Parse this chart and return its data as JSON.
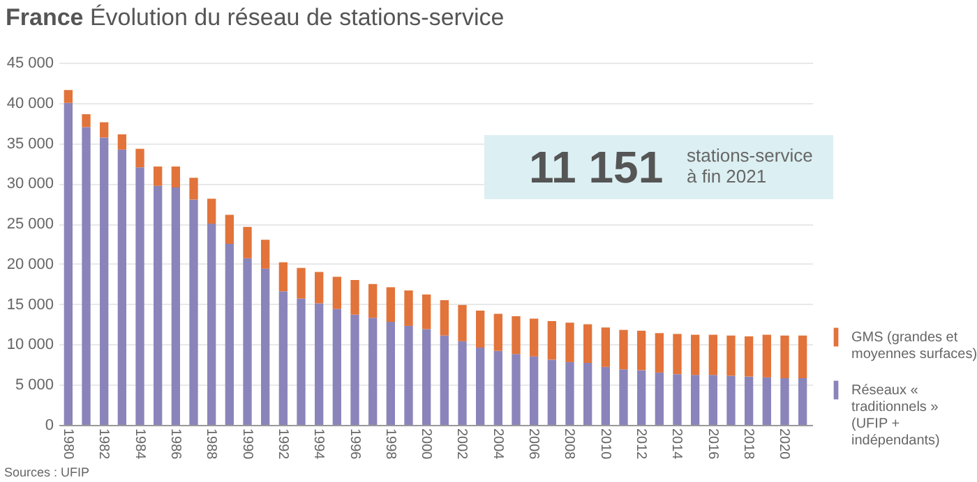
{
  "chart_data": {
    "type": "bar",
    "stacked": true,
    "title": "France",
    "subtitle": "Évolution du réseau de stations-service",
    "annotations": [
      "11 151",
      "stations-service à fin 2021",
      "Sources : UFIP"
    ],
    "categories": [
      "1980",
      null,
      "1982",
      null,
      "1984",
      null,
      "1986",
      null,
      "1988",
      null,
      "1990",
      null,
      "1992",
      null,
      "1994",
      null,
      "1996",
      null,
      "1998",
      null,
      "2000",
      null,
      "2002",
      null,
      "2004",
      null,
      "2006",
      null,
      "2008",
      null,
      "2010",
      null,
      "2012",
      null,
      "2014",
      null,
      "2016",
      null,
      "2018",
      null,
      "2020",
      null
    ],
    "series": [
      {
        "name": "Réseaux « traditionnels » (UFIP + indépendants)",
        "color": "#8a84bb",
        "values": [
          40000,
          37000,
          35700,
          34200,
          32000,
          29700,
          29500,
          28000,
          25000,
          22500,
          20700,
          19400,
          16600,
          15700,
          15100,
          14400,
          13700,
          13300,
          12800,
          12300,
          11900,
          11100,
          10400,
          9600,
          9200,
          8800,
          8500,
          8100,
          7800,
          7700,
          7200,
          6900,
          6800,
          6500,
          6300,
          6200,
          6200,
          6100,
          6000,
          5900,
          5800,
          5800
        ]
      },
      {
        "name": "GMS (grandes et moyennes surfaces)",
        "color": "#e2733a",
        "values": [
          1600,
          1600,
          1900,
          1900,
          2300,
          2400,
          2600,
          2700,
          3100,
          3600,
          3900,
          3600,
          3600,
          3800,
          3900,
          4000,
          4300,
          4200,
          4300,
          4400,
          4300,
          4400,
          4500,
          4600,
          4600,
          4700,
          4700,
          4800,
          4900,
          4800,
          4900,
          4900,
          4900,
          4900,
          5000,
          5000,
          5000,
          5000,
          5000,
          5300,
          5300,
          5300
        ]
      }
    ],
    "ylim": [
      0,
      45000
    ],
    "yticks": [
      {
        "value": 0,
        "label": "0"
      },
      {
        "value": 5000,
        "label": "5 000"
      },
      {
        "value": 10000,
        "label": "10 000"
      },
      {
        "value": 15000,
        "label": "15 000"
      },
      {
        "value": 20000,
        "label": "20 000"
      },
      {
        "value": 25000,
        "label": "25 000"
      },
      {
        "value": 30000,
        "label": "30 000"
      },
      {
        "value": 35000,
        "label": "35 000"
      },
      {
        "value": 40000,
        "label": "40 000"
      },
      {
        "value": 45000,
        "label": "45 000"
      }
    ],
    "grid": "y",
    "legend": "right"
  }
}
